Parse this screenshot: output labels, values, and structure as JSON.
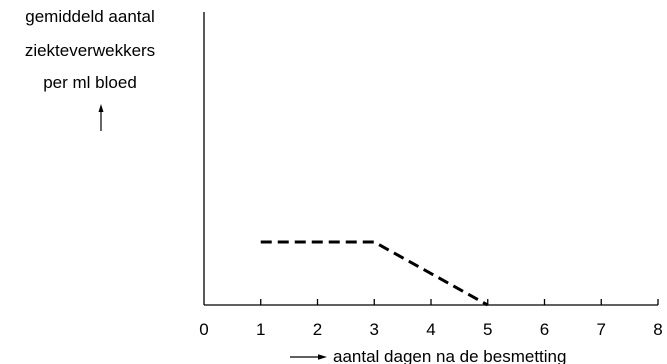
{
  "chart_data": {
    "type": "line",
    "ylabel_lines": [
      "gemiddeld aantal",
      "ziekteverwekkers",
      "per ml bloed"
    ],
    "xlabel": "aantal dagen na de besmetting",
    "x_ticks": [
      "0",
      "1",
      "2",
      "3",
      "4",
      "5",
      "6",
      "7",
      "8"
    ],
    "xlim": [
      0,
      8
    ],
    "series": [
      {
        "style": "dashed",
        "color": "#000000",
        "points": [
          {
            "x": 1,
            "y": 1
          },
          {
            "x": 3,
            "y": 1
          },
          {
            "x": 5,
            "y": 0
          }
        ]
      }
    ],
    "grid": false,
    "legend": "none"
  }
}
